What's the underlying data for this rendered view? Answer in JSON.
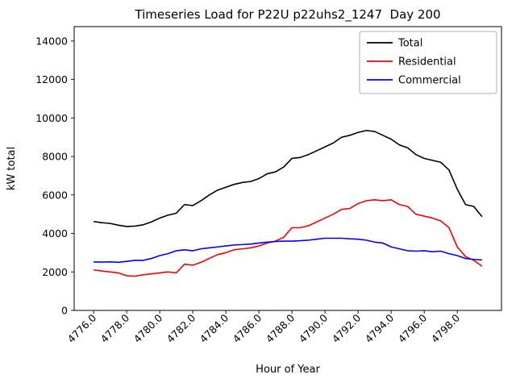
{
  "chart_data": {
    "type": "line",
    "title": "Timeseries Load for P22U p22uhs2_1247  Day 200",
    "xlabel": "Hour of Year",
    "ylabel": "kW total",
    "grid": false,
    "legend_position": "upper right",
    "legend_border_color": "#b0b0b0",
    "frame_color": "#000000",
    "background_color": "#ffffff",
    "xlim": [
      4774.825,
      4800.675
    ],
    "ylim": [
      0,
      14750
    ],
    "xticks": [
      4776,
      4778,
      4780,
      4782,
      4784,
      4786,
      4788,
      4790,
      4792,
      4794,
      4796,
      4798
    ],
    "xtick_labels": [
      "4776.0",
      "4778.0",
      "4780.0",
      "4782.0",
      "4784.0",
      "4786.0",
      "4788.0",
      "4790.0",
      "4792.0",
      "4794.0",
      "4796.0",
      "4798.0"
    ],
    "yticks": [
      0,
      2000,
      4000,
      6000,
      8000,
      10000,
      12000,
      14000
    ],
    "ytick_labels": [
      "0",
      "2000",
      "4000",
      "6000",
      "8000",
      "10000",
      "12000",
      "14000"
    ],
    "x": [
      4776,
      4776.5,
      4777,
      4777.5,
      4778,
      4778.5,
      4779,
      4779.5,
      4780,
      4780.5,
      4781,
      4781.5,
      4782,
      4782.5,
      4783,
      4783.5,
      4784,
      4784.5,
      4785,
      4785.5,
      4786,
      4786.5,
      4787,
      4787.5,
      4788,
      4788.5,
      4789,
      4789.5,
      4790,
      4790.5,
      4791,
      4791.5,
      4792,
      4792.5,
      4793,
      4793.5,
      4794,
      4794.5,
      4795,
      4795.5,
      4796,
      4796.5,
      4797,
      4797.5,
      4798,
      4798.5,
      4799,
      4799.5
    ],
    "series": [
      {
        "name": "Total",
        "color": "#000000",
        "values": [
          4620,
          4560,
          4520,
          4430,
          4360,
          4380,
          4450,
          4600,
          4800,
          4950,
          5050,
          5500,
          5450,
          5700,
          6000,
          6250,
          6400,
          6550,
          6650,
          6700,
          6850,
          7100,
          7200,
          7450,
          7900,
          7950,
          8100,
          8300,
          8500,
          8700,
          9000,
          9100,
          9250,
          9350,
          9300,
          9100,
          8900,
          8600,
          8450,
          8100,
          7900,
          7800,
          7700,
          7300,
          6300,
          5500,
          5400,
          4870
        ]
      },
      {
        "name": "Residential",
        "color": "#ff0000",
        "values": [
          2100,
          2050,
          2000,
          1950,
          1800,
          1780,
          1850,
          1900,
          1950,
          2000,
          1950,
          2400,
          2350,
          2500,
          2700,
          2900,
          3000,
          3150,
          3200,
          3250,
          3350,
          3500,
          3600,
          3800,
          4300,
          4300,
          4400,
          4600,
          4800,
          5000,
          5250,
          5300,
          5550,
          5700,
          5750,
          5700,
          5750,
          5500,
          5400,
          5000,
          4900,
          4800,
          4650,
          4300,
          3300,
          2800,
          2600,
          2300
        ]
      },
      {
        "name": "Commercial",
        "color": "#0000ff",
        "values": [
          2520,
          2510,
          2520,
          2500,
          2550,
          2600,
          2600,
          2700,
          2850,
          2950,
          3100,
          3150,
          3100,
          3200,
          3250,
          3300,
          3350,
          3400,
          3420,
          3450,
          3500,
          3550,
          3580,
          3600,
          3600,
          3620,
          3650,
          3700,
          3750,
          3750,
          3750,
          3720,
          3700,
          3650,
          3550,
          3500,
          3300,
          3200,
          3100,
          3080,
          3100,
          3050,
          3080,
          2950,
          2850,
          2700,
          2650,
          2620
        ]
      }
    ]
  }
}
